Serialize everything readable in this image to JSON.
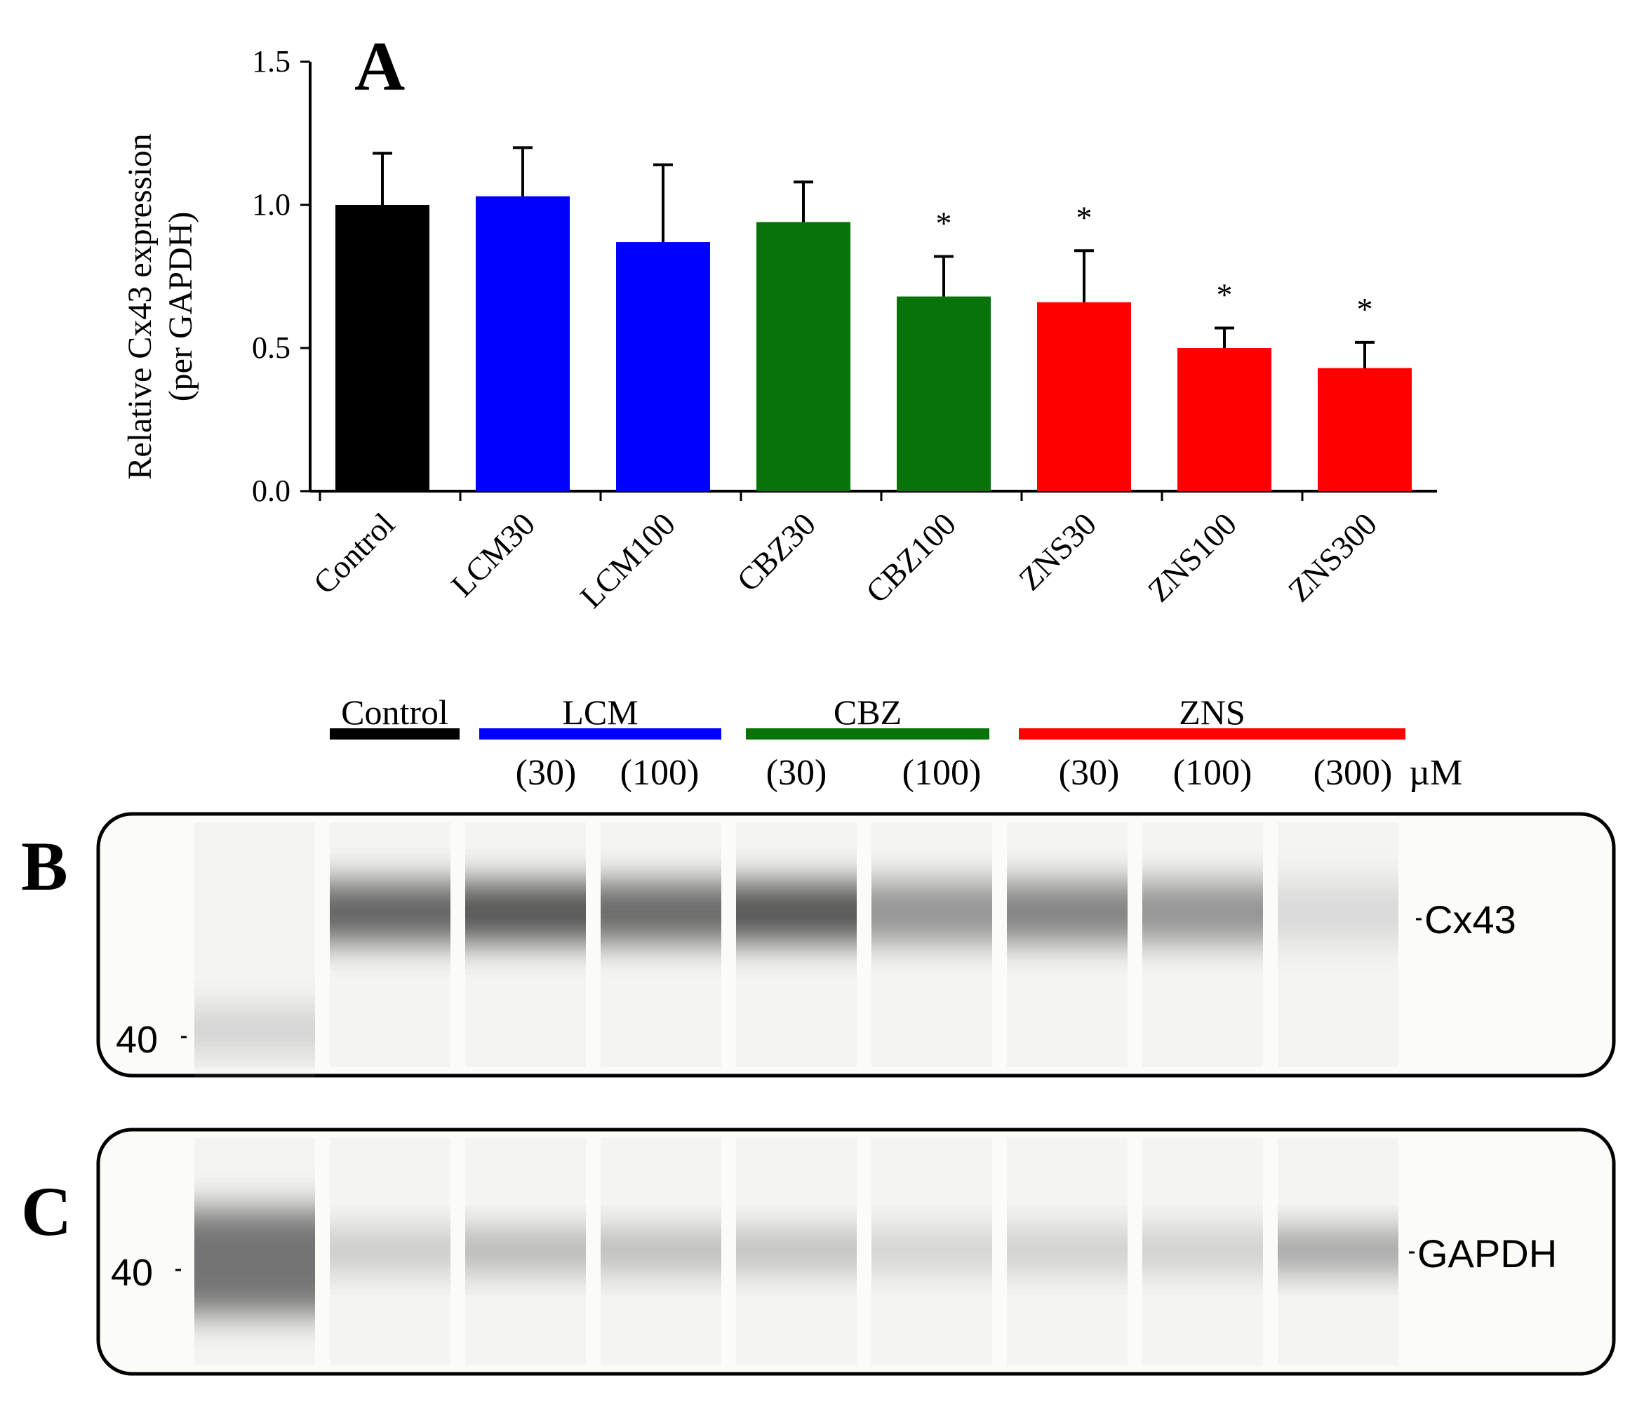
{
  "panels": {
    "a": "A",
    "b": "B",
    "c": "C"
  },
  "chart_data": {
    "type": "bar",
    "title": "",
    "ylabel_line1": "Relative Cx43 expression",
    "ylabel_line2": "(per GAPDH)",
    "xlabel": "",
    "ylim": [
      0,
      1.5
    ],
    "yticks": [
      "0.0",
      "0.5",
      "1.0",
      "1.5"
    ],
    "categories": [
      "Control",
      "LCM30",
      "LCM100",
      "CBZ30",
      "CBZ100",
      "ZNS30",
      "ZNS100",
      "ZNS300"
    ],
    "values": [
      1.0,
      1.03,
      0.87,
      0.94,
      0.68,
      0.66,
      0.5,
      0.43
    ],
    "errors": [
      0.18,
      0.17,
      0.27,
      0.14,
      0.14,
      0.18,
      0.07,
      0.09
    ],
    "significant": [
      false,
      false,
      false,
      false,
      true,
      true,
      true,
      true
    ],
    "marker": "*",
    "colors": [
      "#000000",
      "#0000ff",
      "#0000ff",
      "#087308",
      "#087308",
      "#ff0000",
      "#ff0000",
      "#ff0000"
    ],
    "grid": false
  },
  "groups": [
    {
      "label": "Control",
      "color": "#000000"
    },
    {
      "label": "LCM",
      "color": "#0000ff"
    },
    {
      "label": "CBZ",
      "color": "#087308"
    },
    {
      "label": "ZNS",
      "color": "#ff0000"
    }
  ],
  "concentrations": [
    "(30)",
    "(100)",
    "(30)",
    "(100)",
    "(30)",
    "(100)",
    "(300)"
  ],
  "unit": "µM",
  "blots": {
    "b": {
      "marker": "40",
      "protein": "Cx43",
      "ladder_intensity": 0.18,
      "band_intensities": [
        0.62,
        0.68,
        0.6,
        0.68,
        0.43,
        0.5,
        0.43,
        0.15
      ]
    },
    "c": {
      "marker": "40",
      "protein": "GAPDH",
      "ladder_intensity": 0.55,
      "band_intensities": [
        0.22,
        0.3,
        0.28,
        0.26,
        0.18,
        0.2,
        0.2,
        0.38
      ]
    }
  }
}
